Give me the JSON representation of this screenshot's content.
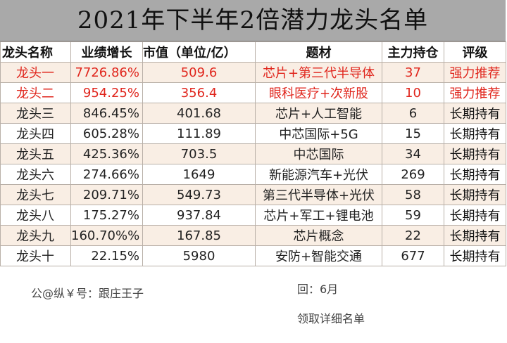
{
  "title": "2021年下半年2倍潜力龙头名单",
  "headers": [
    "龙头名称",
    "业绩增长",
    "市值（单位/亿）",
    "题材",
    "主力持仓",
    "评级"
  ],
  "rows": [
    {
      "name": "龙头一",
      "growth": "7726.86%",
      "mcap": "509.6",
      "theme": "芯片+第三代半导体",
      "holding": "37",
      "rating": "强力推荐"
    },
    {
      "name": "龙头二",
      "growth": "954.25%",
      "mcap": "356.4",
      "theme": "眼科医疗+次新股",
      "holding": "10",
      "rating": "强力推荐"
    },
    {
      "name": "龙头三",
      "growth": "846.45%",
      "mcap": "401.68",
      "theme": "芯片+人工智能",
      "holding": "6",
      "rating": "长期持有"
    },
    {
      "name": "龙头四",
      "growth": "605.28%",
      "mcap": "111.89",
      "theme": "中芯国际+5G",
      "holding": "15",
      "rating": "长期持有"
    },
    {
      "name": "龙头五",
      "growth": "425.36%",
      "mcap": "703.5",
      "theme": "中芯国际",
      "holding": "34",
      "rating": "长期持有"
    },
    {
      "name": "龙头六",
      "growth": "274.66%",
      "mcap": "1649",
      "theme": "新能源汽车+光伏",
      "holding": "269",
      "rating": "长期持有"
    },
    {
      "name": "龙头七",
      "growth": "209.71%",
      "mcap": "549.73",
      "theme": "第三代半导体+光伏",
      "holding": "58",
      "rating": "长期持有"
    },
    {
      "name": "龙头八",
      "growth": "175.27%",
      "mcap": "937.84",
      "theme": "芯片+军工+锂电池",
      "holding": "59",
      "rating": "长期持有"
    },
    {
      "name": "龙头九",
      "growth": "160.70%%",
      "mcap": "167.85",
      "theme": "芯片概念",
      "holding": "22",
      "rating": "长期持有"
    },
    {
      "name": "龙头十",
      "growth": "22.15%",
      "mcap": "5980",
      "theme": "安防+智能交通",
      "holding": "677",
      "rating": "长期持有"
    }
  ],
  "footer": {
    "account": "公@纵￥号：跟庄王子",
    "reply": "回：6月",
    "claim": "领取详细名单"
  },
  "colors": {
    "title_bg": "#a9a9a9",
    "row_tint": "#f9eee4",
    "highlight_red": "#e0251c",
    "border": "#b9b0a8"
  }
}
